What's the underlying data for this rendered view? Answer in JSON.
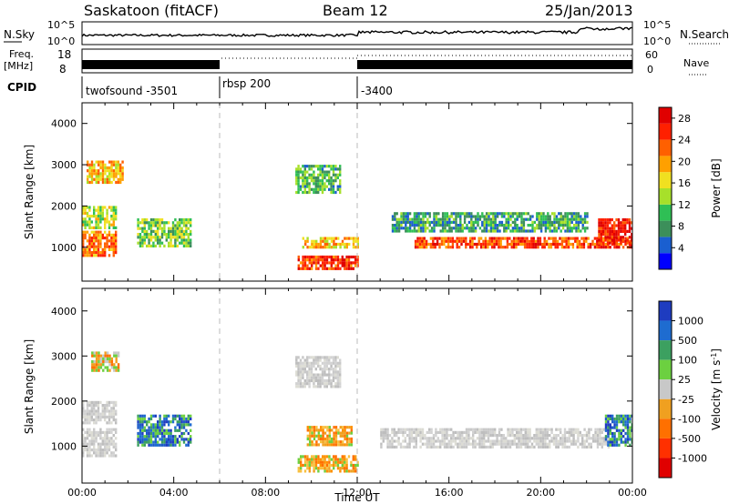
{
  "header": {
    "station": "Saskatoon (fitACF)",
    "beam": "Beam 12",
    "date": "25/Jan/2013"
  },
  "summary_panels": {
    "nsky_label": "N.Sky",
    "nsky_top": "10^5",
    "nsky_bottom": "10^0",
    "nsearch_label": "N.Search",
    "nsearch_top": "10^5",
    "nsearch_bottom": "10^0",
    "freq_label_1": "Freq.",
    "freq_label_2": "[MHz]",
    "freq_top": "18",
    "freq_bottom": "8",
    "nave_label": "Nave",
    "nave_top": "60",
    "nave_bottom": "0",
    "cpid_label": "CPID",
    "cpid_segments": [
      {
        "label": "twofsound -3501",
        "start_hour": 0,
        "end_hour": 6
      },
      {
        "label": "rbsp 200",
        "start_hour": 6,
        "end_hour": 12
      },
      {
        "label": "-3400",
        "start_hour": 12,
        "end_hour": 24
      }
    ]
  },
  "chart_data": [
    {
      "type": "heatmap",
      "panel": "power",
      "xlabel": "",
      "ylabel": "Slant Range [km]",
      "xlim": [
        "00:00",
        "24:00"
      ],
      "ylim": [
        180,
        4500
      ],
      "yticks": [
        "1000",
        "2000",
        "3000",
        "4000"
      ],
      "colorbar": {
        "label": "Power [dB]",
        "ticks": [
          "4",
          "8",
          "12",
          "16",
          "20",
          "24",
          "28"
        ],
        "range": [
          0,
          30
        ],
        "colors": [
          "#0000ff",
          "#1a5fd0",
          "#3c8f5a",
          "#2fbf55",
          "#a7e02a",
          "#f0e020",
          "#ffa000",
          "#ff6000",
          "#ff2000",
          "#e00000"
        ]
      },
      "echo_regions": [
        {
          "t0": 0.0,
          "t1": 1.5,
          "r0": 800,
          "r1": 1400,
          "level": 22
        },
        {
          "t0": 0.0,
          "t1": 1.5,
          "r0": 1500,
          "r1": 2000,
          "level": 14
        },
        {
          "t0": 0.2,
          "t1": 1.8,
          "r0": 2600,
          "r1": 3100,
          "level": 18
        },
        {
          "t0": 2.4,
          "t1": 4.7,
          "r0": 1050,
          "r1": 1700,
          "level": 12
        },
        {
          "t0": 9.3,
          "t1": 11.3,
          "r0": 2300,
          "r1": 3000,
          "level": 10
        },
        {
          "t0": 9.6,
          "t1": 12.0,
          "r0": 1000,
          "r1": 1250,
          "level": 18
        },
        {
          "t0": 9.4,
          "t1": 12.0,
          "r0": 450,
          "r1": 800,
          "level": 25
        },
        {
          "t0": 13.5,
          "t1": 22.0,
          "r0": 1400,
          "r1": 1850,
          "level": 9
        },
        {
          "t0": 14.5,
          "t1": 24.0,
          "r0": 1000,
          "r1": 1250,
          "level": 24
        },
        {
          "t0": 22.5,
          "t1": 24.0,
          "r0": 1100,
          "r1": 1700,
          "level": 27
        }
      ]
    },
    {
      "type": "heatmap",
      "panel": "velocity",
      "xlabel": "Time UT",
      "ylabel": "Slant Range [km]",
      "xlim": [
        "00:00",
        "24:00"
      ],
      "xticks": [
        "00:00",
        "04:00",
        "08:00",
        "12:00",
        "16:00",
        "20:00",
        "00:00"
      ],
      "ylim": [
        180,
        4500
      ],
      "yticks": [
        "1000",
        "2000",
        "3000",
        "4000"
      ],
      "colorbar": {
        "label": "Velocity [m s^-1]",
        "ticks": [
          "1000",
          "500",
          "100",
          "25",
          "-25",
          "-100",
          "-500",
          "-1000"
        ],
        "colors": [
          "#1e3cc0",
          "#1e6cd0",
          "#3ca060",
          "#6cd040",
          "#c8c8c8",
          "#f0a020",
          "#ff7000",
          "#ff3000",
          "#e00000"
        ]
      },
      "echo_regions": [
        {
          "t0": 0.0,
          "t1": 1.5,
          "r0": 800,
          "r1": 1400,
          "class": "gs"
        },
        {
          "t0": 0.0,
          "t1": 1.5,
          "r0": 1500,
          "r1": 2000,
          "class": "gs"
        },
        {
          "t0": 0.4,
          "t1": 1.6,
          "r0": 2700,
          "r1": 3100,
          "class": "mixed"
        },
        {
          "t0": 2.4,
          "t1": 4.7,
          "r0": 1050,
          "r1": 1700,
          "class": "positive"
        },
        {
          "t0": 9.3,
          "t1": 11.3,
          "r0": 2300,
          "r1": 3000,
          "class": "gs"
        },
        {
          "t0": 9.8,
          "t1": 11.8,
          "r0": 1000,
          "r1": 1450,
          "class": "negative"
        },
        {
          "t0": 9.4,
          "t1": 12.0,
          "r0": 450,
          "r1": 800,
          "class": "negative"
        },
        {
          "t0": 13.0,
          "t1": 23.0,
          "r0": 1000,
          "r1": 1400,
          "class": "gs"
        },
        {
          "t0": 22.8,
          "t1": 24.0,
          "r0": 1000,
          "r1": 1700,
          "class": "positive"
        }
      ]
    }
  ]
}
